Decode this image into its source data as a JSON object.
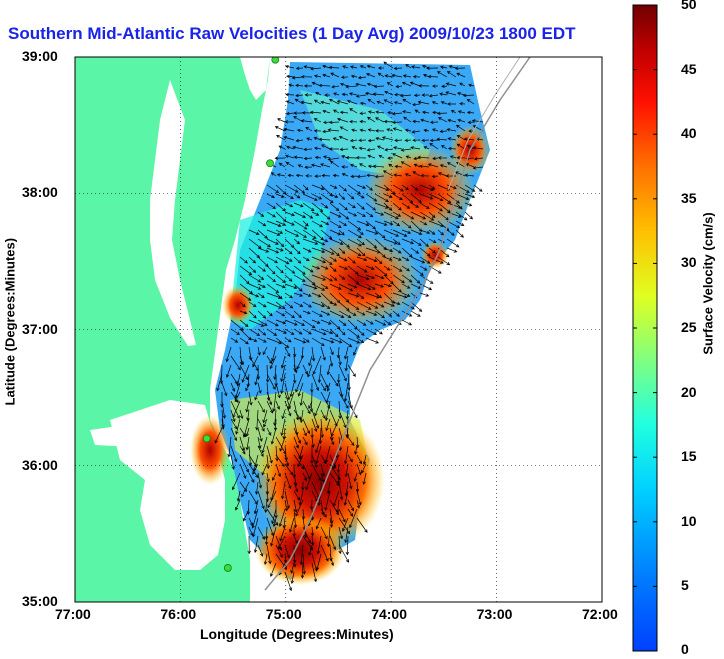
{
  "title": "Southern Mid-Atlantic Raw Velocities (1 Day Avg) 2009/10/23 1800 EDT",
  "axes": {
    "xlabel": "Longitude (Degrees:Minutes)",
    "ylabel": "Latitude (Degrees:Minutes)",
    "x_ticks": [
      "77:00",
      "76:00",
      "75:00",
      "74:00",
      "73:00",
      "72:00"
    ],
    "y_ticks": [
      "39:00",
      "38:00",
      "37:00",
      "36:00",
      "35:00"
    ]
  },
  "colorbar": {
    "label": "Surface Velocity (cm/s)",
    "ticks": [
      "50",
      "45",
      "40",
      "35",
      "30",
      "25",
      "20",
      "15",
      "10",
      "5",
      "0"
    ],
    "range": [
      0,
      50
    ],
    "colormap": "jet"
  },
  "colors": {
    "title": "#1a23e8",
    "land": "#5af5a6",
    "water": "#ffffff",
    "station": "#3cdc3c"
  },
  "map": {
    "lon_range": [
      -77,
      -72
    ],
    "lat_range": [
      35,
      39
    ],
    "stations": [
      {
        "lon": -75.1,
        "lat": 38.98
      },
      {
        "lon": -75.15,
        "lat": 38.22
      },
      {
        "lon": -75.75,
        "lat": 36.2
      },
      {
        "lon": -75.55,
        "lat": 35.25
      }
    ]
  }
}
